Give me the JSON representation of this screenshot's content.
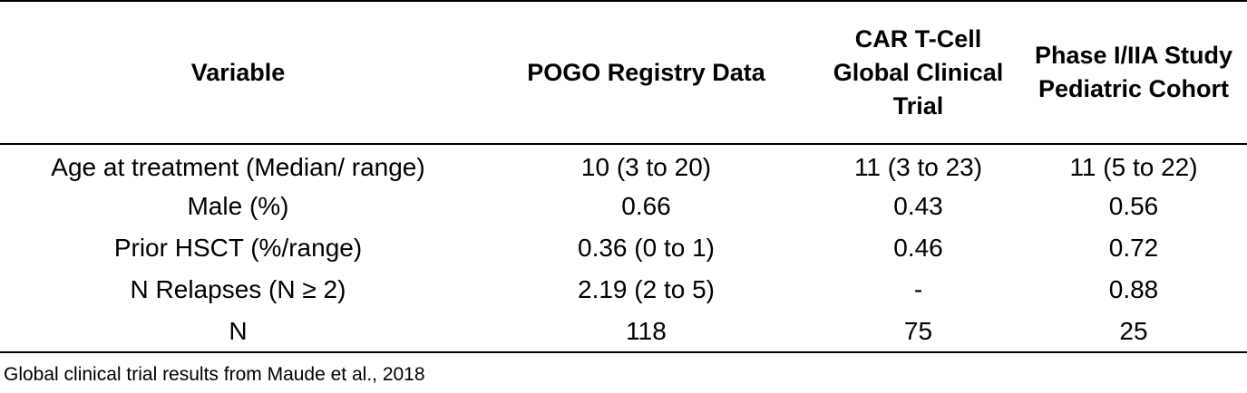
{
  "table": {
    "headers": [
      "Variable",
      "POGO Registry Data",
      "CAR T-Cell Global Clinical Trial",
      "Phase I/IIA Study Pediatric Cohort"
    ],
    "rows": [
      [
        "Age at treatment (Median/ range)",
        "10 (3 to 20)",
        "11 (3 to 23)",
        "11 (5 to 22)"
      ],
      [
        "Male (%)",
        "0.66",
        "0.43",
        "0.56"
      ],
      [
        "Prior HSCT (%/range)",
        "0.36 (0 to 1)",
        "0.46",
        "0.72"
      ],
      [
        "N Relapses (N ≥ 2)",
        "2.19 (2 to 5)",
        "-",
        "0.88"
      ],
      [
        "N",
        "118",
        "75",
        "25"
      ]
    ]
  },
  "footnote": "Global clinical trial results from Maude et al., 2018"
}
